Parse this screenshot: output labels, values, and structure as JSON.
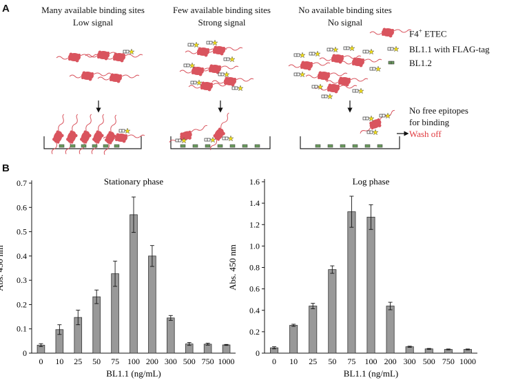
{
  "panel_a": {
    "letter": "A",
    "scenarios": [
      {
        "title": "Many available binding sites",
        "subtitle": "Low signal"
      },
      {
        "title": "Few available binding sites",
        "subtitle": "Strong signal"
      },
      {
        "title": "No available binding sites",
        "subtitle": "No signal"
      }
    ],
    "legend": {
      "etec_prefix": "F4",
      "etec_sup": "+",
      "etec_suffix": " ETEC",
      "bl11": "BL1.1 with FLAG-tag",
      "bl12": "BL1.2"
    },
    "note_line1": "No free epitopes",
    "note_line2": "for binding",
    "wash_off": "Wash off",
    "colors": {
      "bacteria": "#d9545e",
      "star": "#f5e11a",
      "nanobody": "#6b9c5e",
      "wash": "#e0393e"
    }
  },
  "panel_b": {
    "letter": "B"
  },
  "chart_data": [
    {
      "type": "bar",
      "title": "Stationary phase",
      "xlabel": "BL1.1 (ng/mL)",
      "ylabel": "Abs. 450 nm",
      "categories": [
        "0",
        "10",
        "25",
        "50",
        "75",
        "100",
        "200",
        "300",
        "500",
        "750",
        "1000"
      ],
      "values": [
        0.033,
        0.097,
        0.147,
        0.232,
        0.327,
        0.57,
        0.4,
        0.145,
        0.038,
        0.037,
        0.034
      ],
      "errors": [
        0.006,
        0.02,
        0.03,
        0.028,
        0.052,
        0.073,
        0.043,
        0.01,
        0.006,
        0.004,
        0.002
      ],
      "ylim": [
        0,
        0.7
      ],
      "yticks": [
        "0",
        "0.1",
        "0.2",
        "0.3",
        "0.4",
        "0.5",
        "0.6",
        "0.7"
      ],
      "bar_color": "#999999"
    },
    {
      "type": "bar",
      "title": "Log phase",
      "xlabel": "BL1.1 (ng/mL)",
      "ylabel": "Abs. 450 nm",
      "categories": [
        "0",
        "10",
        "25",
        "50",
        "75",
        "100",
        "200",
        "300",
        "500",
        "750",
        "1000"
      ],
      "values": [
        0.05,
        0.26,
        0.44,
        0.78,
        1.32,
        1.27,
        0.44,
        0.06,
        0.04,
        0.035,
        0.035
      ],
      "errors": [
        0.01,
        0.01,
        0.025,
        0.035,
        0.145,
        0.115,
        0.035,
        0.005,
        0.004,
        0.004,
        0.004
      ],
      "ylim": [
        0,
        1.6
      ],
      "yticks": [
        "0",
        "0.2",
        "0.4",
        "0.6",
        "0.8",
        "1.0",
        "1.2",
        "1.4",
        "1.6"
      ],
      "bar_color": "#999999"
    }
  ]
}
